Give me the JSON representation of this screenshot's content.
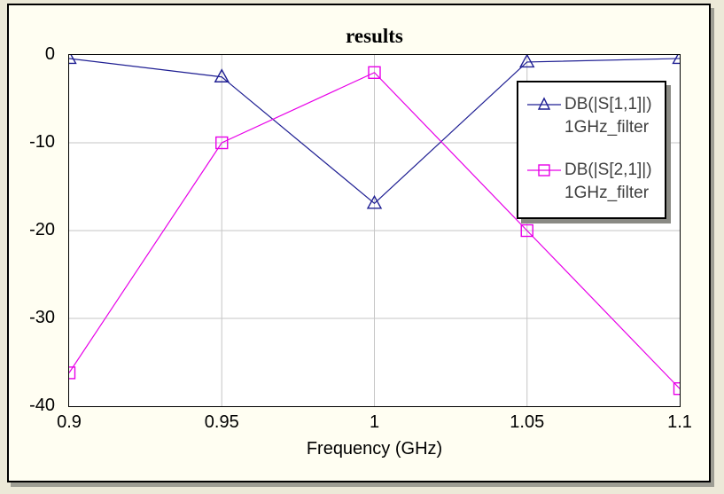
{
  "window": {
    "background_color": "#ece9d8",
    "canvas_color": "#fffef2",
    "shadow_color": "#9e9e94"
  },
  "chart_data": {
    "type": "line",
    "title": "results",
    "xlabel": "Frequency (GHz)",
    "ylabel": "",
    "xlim": [
      0.9,
      1.1
    ],
    "ylim": [
      -40,
      0
    ],
    "x_ticks": [
      0.9,
      0.95,
      1,
      1.05,
      1.1
    ],
    "x_tick_labels": [
      "0.9",
      "0.95",
      "1",
      "1.05",
      "1.1"
    ],
    "y_ticks": [
      0,
      -10,
      -20,
      -30,
      -40
    ],
    "y_tick_labels": [
      "0",
      "-10",
      "-20",
      "-30",
      "-40"
    ],
    "grid": true,
    "grid_color": "#c6c6c6",
    "legend_position": "upper right",
    "x": [
      0.9,
      0.95,
      1.0,
      1.05,
      1.1
    ],
    "series": [
      {
        "name": "DB(|S[1,1]|)",
        "sublabel": "1GHz_filter",
        "color": "#1f1f93",
        "marker": "triangle",
        "values": [
          -0.4,
          -2.5,
          -16.9,
          -0.8,
          -0.4
        ]
      },
      {
        "name": "DB(|S[2,1]|)",
        "sublabel": "1GHz_filter",
        "color": "#e800e8",
        "marker": "square",
        "values": [
          -36.2,
          -10.0,
          -2.0,
          -20.0,
          -38.0
        ]
      }
    ]
  }
}
